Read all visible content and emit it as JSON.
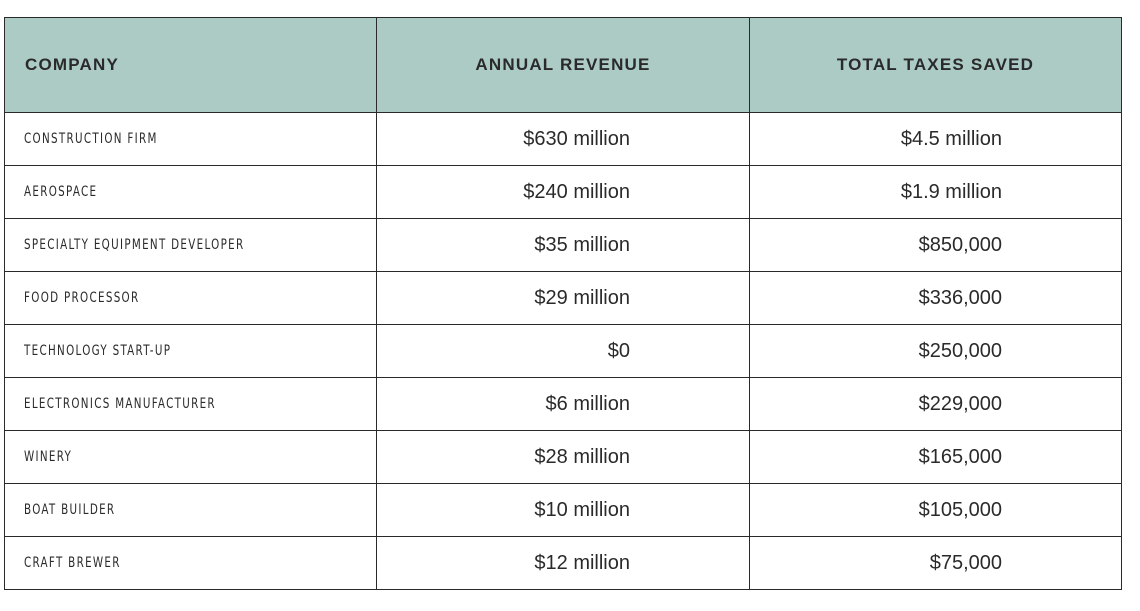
{
  "table": {
    "headers": [
      "COMPANY",
      "ANNUAL REVENUE",
      "TOTAL TAXES SAVED"
    ],
    "rows": [
      {
        "company": "CONSTRUCTION FIRM",
        "revenue": "$630 million",
        "taxes_saved": "$4.5 million"
      },
      {
        "company": "AEROSPACE",
        "revenue": "$240 million",
        "taxes_saved": "$1.9 million"
      },
      {
        "company": "SPECIALTY EQUIPMENT DEVELOPER",
        "revenue": "$35 million",
        "taxes_saved": "$850,000"
      },
      {
        "company": "FOOD PROCESSOR",
        "revenue": "$29 million",
        "taxes_saved": "$336,000"
      },
      {
        "company": "TECHNOLOGY START-UP",
        "revenue": "$0",
        "taxes_saved": "$250,000"
      },
      {
        "company": "ELECTRONICS MANUFACTURER",
        "revenue": "$6 million",
        "taxes_saved": "$229,000"
      },
      {
        "company": "WINERY",
        "revenue": "$28 million",
        "taxes_saved": "$165,000"
      },
      {
        "company": "BOAT BUILDER",
        "revenue": "$10 million",
        "taxes_saved": "$105,000"
      },
      {
        "company": "CRAFT BREWER",
        "revenue": "$12 million",
        "taxes_saved": "$75,000"
      }
    ]
  },
  "colors": {
    "header_background": "#abcbc4",
    "border": "#2a2a2a",
    "text": "#2a2a2a"
  }
}
